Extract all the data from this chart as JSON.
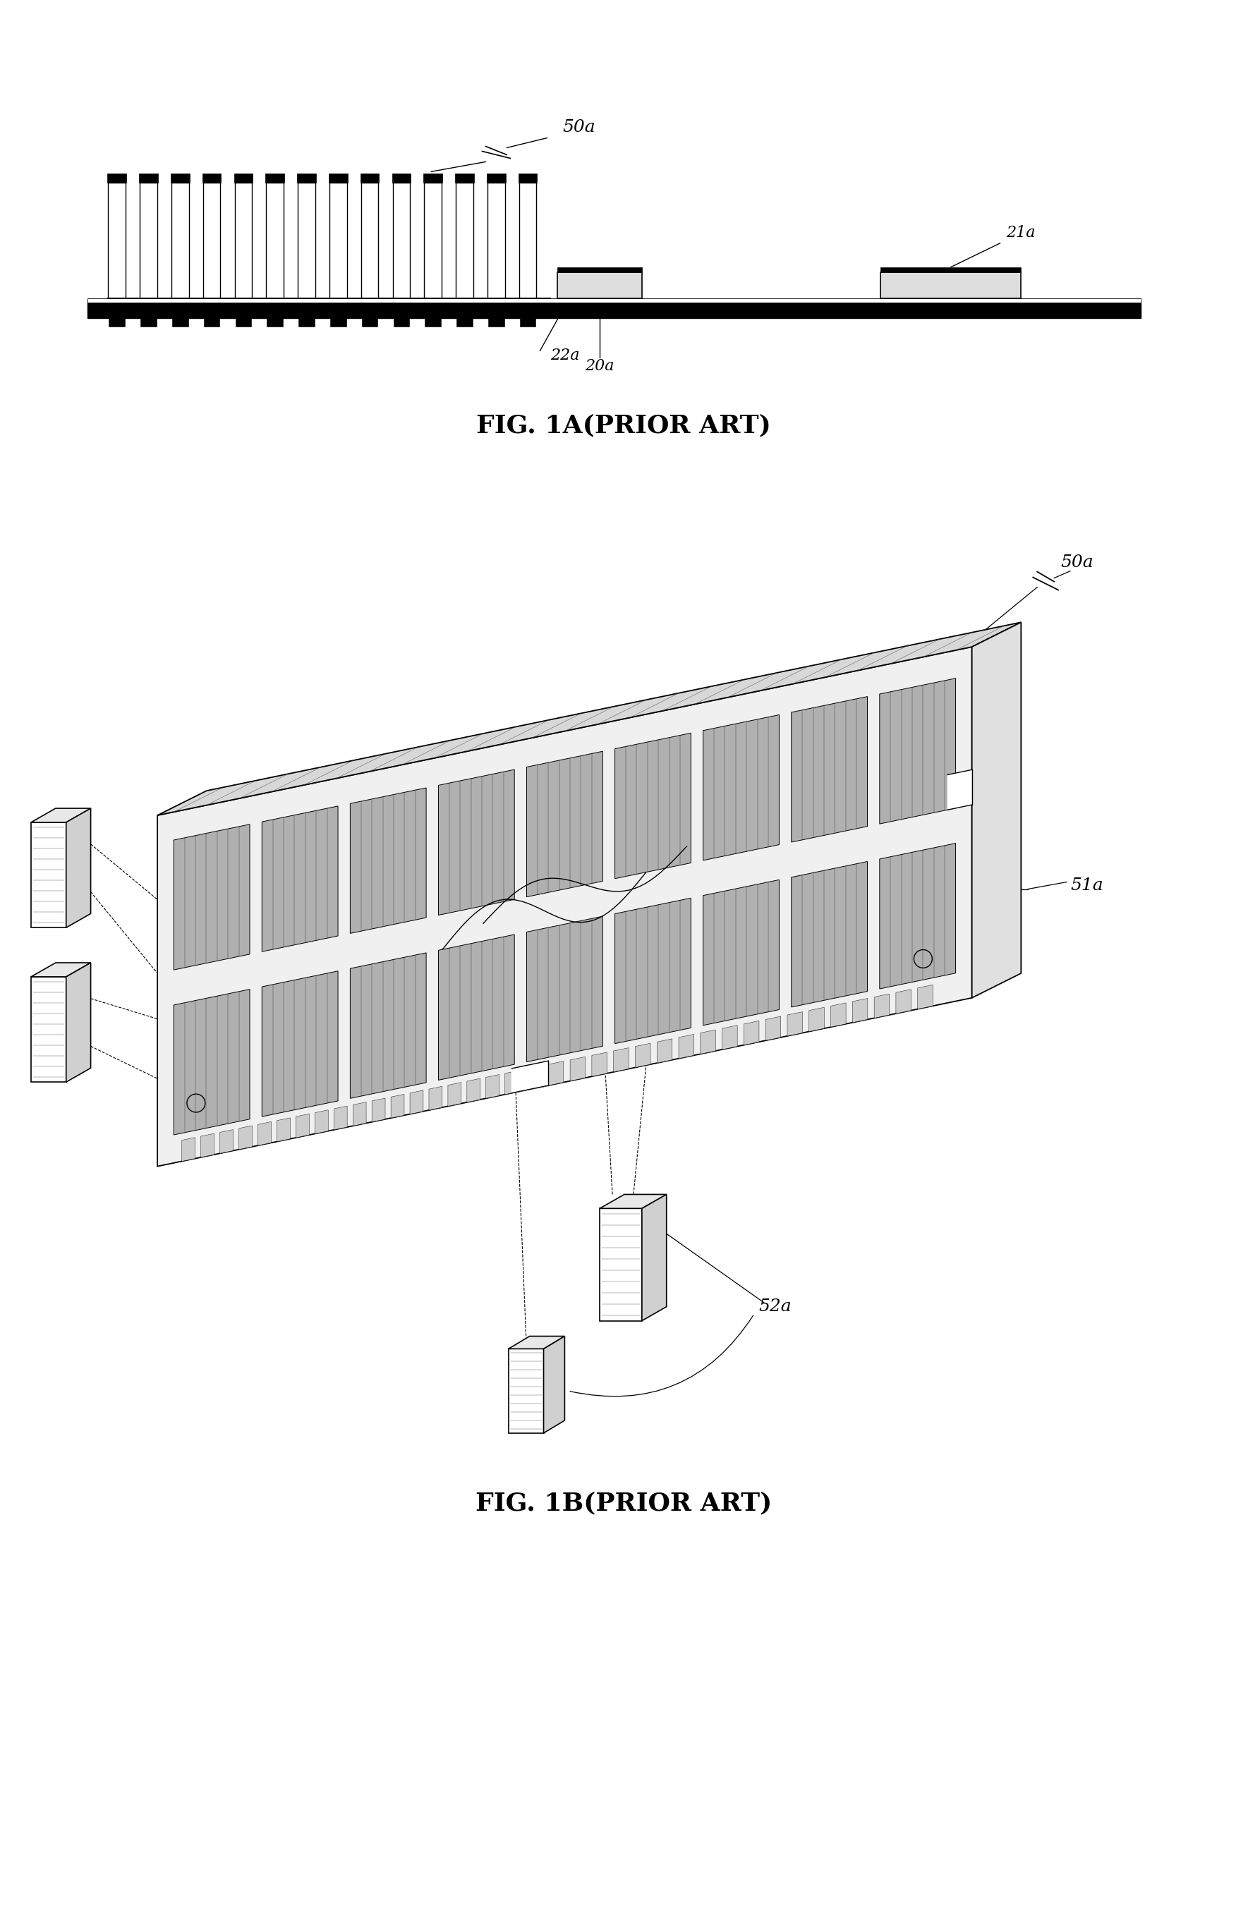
{
  "fig_width": 17.69,
  "fig_height": 27.35,
  "background_color": "#ffffff",
  "line_color": "#000000",
  "fig1a_title": "FIG. 1A(PRIOR ART)",
  "fig1b_title": "FIG. 1B(PRIOR ART)",
  "labels": {
    "50a_1": "50a",
    "21a": "21a",
    "22a": "22a",
    "20a": "20a",
    "50a_2": "50a",
    "51a": "51a",
    "52a": "52a"
  },
  "title_fontsize": 26,
  "label_fontsize": 18
}
